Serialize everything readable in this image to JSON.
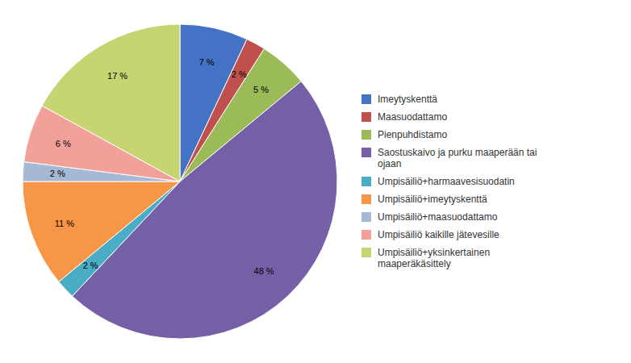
{
  "chart_data": {
    "type": "pie",
    "categories": [
      "Imeytyskenttä",
      "Maasuodattamo",
      "Pienpuhdistamo",
      "Saostuskaivo ja purku maaperään tai\nojaan",
      "Umpisäiliö+harmaavesisuodatin",
      "Umpisäiliö+imeytyskenttä",
      "Umpisäiliö+maasuodattamo",
      "Umpisäiliö kaikille jätevesille",
      "Umpisäiliö+yksinkertainen\nmaaperäkäsittely"
    ],
    "values": [
      7,
      2,
      5,
      48,
      2,
      11,
      2,
      6,
      17
    ],
    "value_labels": [
      "7 %",
      "2 %",
      "5 %",
      "48 %",
      "2 %",
      "11 %",
      "2 %",
      "6 %",
      "17 %"
    ],
    "colors": [
      "#4472C4",
      "#C0504D",
      "#9BBB59",
      "#7560A8",
      "#4BACC6",
      "#F79646",
      "#A5B8D4",
      "#F2A09A",
      "#C6D472"
    ],
    "legend": "right",
    "data_labels": true
  }
}
